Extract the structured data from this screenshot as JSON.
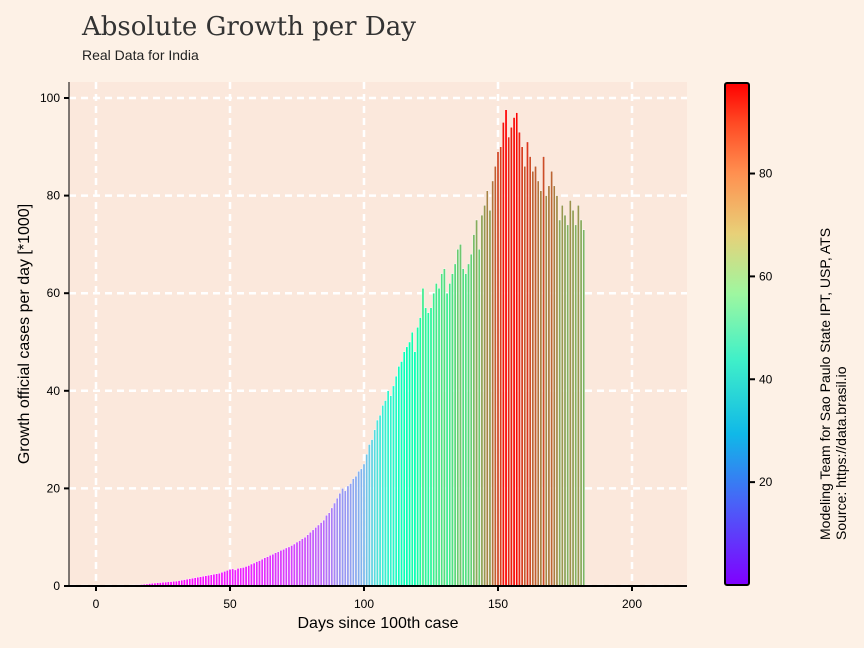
{
  "colors": {
    "page_bg": "#fdf1e6",
    "plot_bg": "#fbe8dc",
    "grid": "#ffffff",
    "axis": "#000000",
    "colormap": "rainbow"
  },
  "chart_data": {
    "type": "bar",
    "title": "Absolute Growth per Day",
    "subtitle": "Real Data for India",
    "xlabel": "Days since 100th case",
    "ylabel": "Growth official cases per day [*1000]",
    "xlim": [
      -10,
      220
    ],
    "ylim": [
      0,
      100
    ],
    "xticks": [
      0,
      50,
      100,
      150,
      200
    ],
    "yticks": [
      0,
      20,
      40,
      60,
      80,
      100
    ],
    "grid": true,
    "colorbar": {
      "range": [
        0,
        97.6
      ],
      "ticks": [
        20,
        40,
        60,
        80
      ]
    },
    "annotation": [
      "Modeling Team for Sao Paulo State IPT, USP, ATS",
      "Source: https://data.brasil.io"
    ],
    "x_start": 0,
    "values": [
      0.02,
      0.03,
      0.04,
      0.03,
      0.05,
      0.05,
      0.06,
      0.07,
      0.08,
      0.1,
      0.12,
      0.14,
      0.16,
      0.18,
      0.2,
      0.23,
      0.25,
      0.3,
      0.35,
      0.4,
      0.5,
      0.55,
      0.6,
      0.65,
      0.7,
      0.75,
      0.8,
      0.85,
      0.9,
      0.95,
      1.0,
      1.1,
      1.2,
      1.3,
      1.4,
      1.5,
      1.6,
      1.7,
      1.8,
      1.9,
      2.0,
      2.1,
      2.2,
      2.3,
      2.4,
      2.5,
      2.6,
      2.8,
      3.0,
      3.2,
      3.4,
      3.5,
      3.3,
      3.6,
      3.7,
      3.8,
      4.0,
      4.2,
      4.5,
      4.7,
      5.0,
      5.2,
      5.5,
      5.8,
      6.0,
      6.3,
      6.5,
      6.8,
      7.0,
      7.3,
      7.5,
      7.8,
      8.0,
      8.3,
      8.6,
      9.0,
      9.3,
      9.7,
      10.0,
      10.5,
      11.0,
      11.5,
      12.0,
      12.5,
      13.0,
      13.5,
      14.5,
      15.0,
      16.0,
      17.0,
      18.0,
      19.0,
      20.0,
      19.5,
      20.5,
      21.0,
      22.0,
      22.5,
      23.5,
      24.0,
      25.0,
      27.0,
      29.0,
      30.0,
      32.0,
      34.0,
      35.0,
      37.0,
      38.0,
      40.0,
      39.0,
      41.0,
      43.0,
      45.0,
      46.0,
      48.0,
      49.0,
      50.0,
      52.0,
      48.0,
      53.0,
      55.0,
      61.0,
      57.0,
      56.0,
      57.0,
      60.0,
      62.0,
      61.0,
      64.0,
      65.0,
      60.0,
      62.0,
      64.0,
      66.0,
      69.0,
      70.0,
      65.0,
      64.0,
      66.0,
      68.0,
      72.0,
      75.0,
      69.0,
      76.0,
      78.0,
      81.0,
      77.0,
      83.0,
      86.0,
      89.0,
      90.0,
      95.0,
      97.6,
      92.0,
      94.0,
      96.0,
      97.0,
      93.0,
      90.0,
      86.0,
      91.0,
      88.0,
      85.0,
      86.0,
      83.0,
      81.0,
      88.0,
      80.0,
      82.0,
      85.0,
      82.0,
      80.0,
      75.0,
      78.0,
      76.0,
      74.0,
      79.0,
      77.0,
      74.0,
      78.0,
      75.0,
      73.0
    ]
  }
}
